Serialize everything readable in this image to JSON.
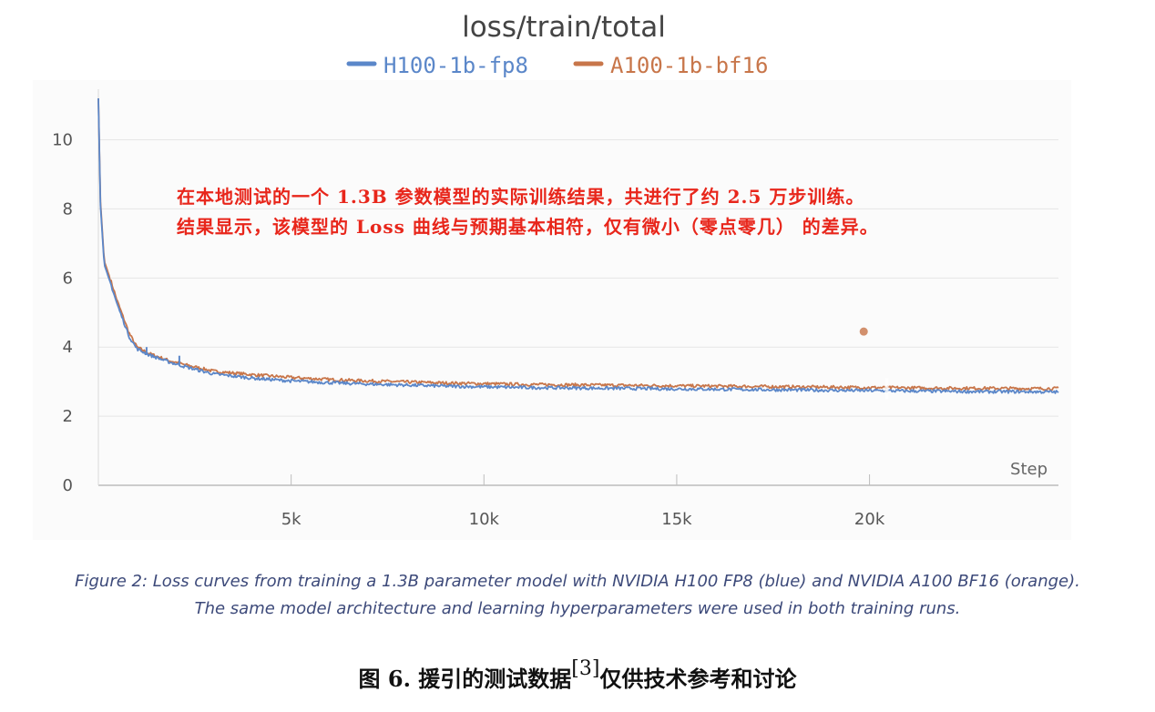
{
  "chart_data": {
    "type": "line",
    "title": "loss/train/total",
    "xlabel": "Step",
    "ylabel": "",
    "xlim": [
      0,
      24900
    ],
    "ylim": [
      0,
      11.2
    ],
    "x_ticks": [
      5000,
      10000,
      15000,
      20000
    ],
    "x_tick_labels": [
      "5k",
      "10k",
      "15k",
      "20k"
    ],
    "y_ticks": [
      0,
      2,
      4,
      6,
      8,
      10
    ],
    "y_tick_labels": [
      "0",
      "2",
      "4",
      "6",
      "8",
      "10"
    ],
    "grid": true,
    "legend_position": "top-center",
    "series": [
      {
        "name": "H100-1b-fp8",
        "color": "#5b87c9",
        "x": [
          0,
          50,
          150,
          300,
          500,
          800,
          1000,
          1300,
          1500,
          1800,
          2200,
          2600,
          3000,
          4000,
          5000,
          6000,
          7000,
          8000,
          9000,
          10000,
          11000,
          12000,
          13000,
          14000,
          15000,
          16000,
          17000,
          18000,
          19000,
          20000,
          21000,
          22000,
          23000,
          24000,
          24900
        ],
        "values": [
          11.2,
          8.2,
          6.4,
          5.9,
          5.2,
          4.3,
          3.95,
          3.78,
          3.7,
          3.58,
          3.45,
          3.33,
          3.22,
          3.1,
          3.02,
          2.97,
          2.93,
          2.9,
          2.87,
          2.85,
          2.83,
          2.82,
          2.81,
          2.8,
          2.79,
          2.78,
          2.77,
          2.76,
          2.75,
          2.74,
          2.73,
          2.72,
          2.71,
          2.71,
          2.7
        ],
        "spikes": [
          [
            1250,
            4.0
          ],
          [
            2100,
            3.75
          ]
        ]
      },
      {
        "name": "A100-1b-bf16",
        "color": "#c8764a",
        "x": [
          0,
          50,
          150,
          300,
          500,
          800,
          1000,
          1300,
          1500,
          1800,
          2200,
          2600,
          3000,
          4000,
          5000,
          6000,
          7000,
          8000,
          9000,
          10000,
          11000,
          12000,
          13000,
          14000,
          15000,
          16000,
          17000,
          18000,
          19000,
          20000,
          21000,
          22000,
          23000,
          24000,
          24900
        ],
        "values": [
          11.2,
          8.3,
          6.5,
          6.0,
          5.3,
          4.4,
          4.0,
          3.82,
          3.74,
          3.62,
          3.5,
          3.4,
          3.3,
          3.2,
          3.12,
          3.06,
          3.02,
          2.99,
          2.96,
          2.94,
          2.92,
          2.91,
          2.9,
          2.89,
          2.88,
          2.87,
          2.86,
          2.85,
          2.84,
          2.83,
          2.82,
          2.81,
          2.81,
          2.8,
          2.8
        ],
        "outlier": [
          19850,
          4.45
        ]
      }
    ]
  },
  "annotation": {
    "line1": "在本地测试的一个 1.3B 参数模型的实际训练结果，共进行了约 2.5 万步训练。",
    "line2": "结果显示，该模型的 Loss 曲线与预期基本相符，仅有微小（零点零几） 的差异。"
  },
  "caption": {
    "line1": "Figure 2: Loss curves from training a 1.3B parameter model with NVIDIA H100 FP8 (blue) and NVIDIA A100 BF16 (orange).",
    "line2": "The same model architecture and learning hyperparameters were used in both training runs."
  },
  "figure_title": {
    "prefix": "图 6. 援引的测试数据",
    "ref": "[3]",
    "suffix": "仅供技术参考和讨论"
  }
}
